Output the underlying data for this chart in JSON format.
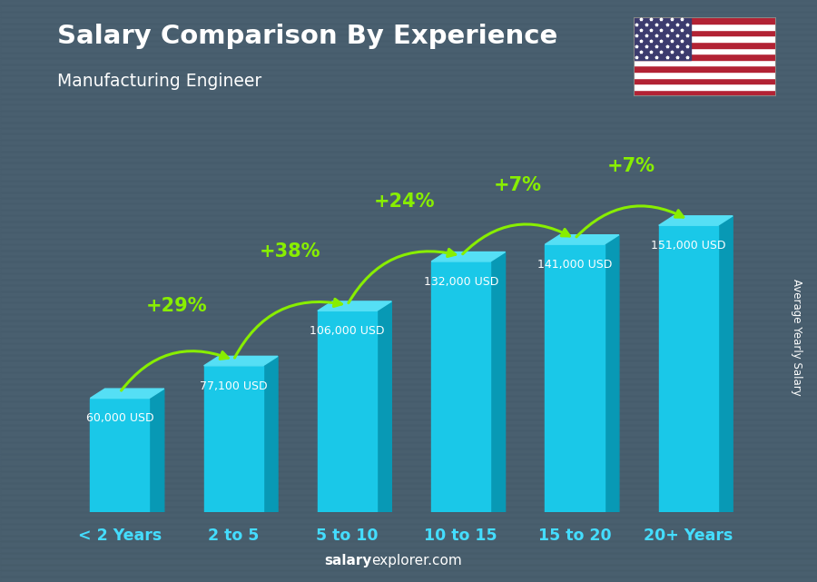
{
  "title": "Salary Comparison By Experience",
  "subtitle": "Manufacturing Engineer",
  "categories": [
    "< 2 Years",
    "2 to 5",
    "5 to 10",
    "10 to 15",
    "15 to 20",
    "20+ Years"
  ],
  "values": [
    60000,
    77100,
    106000,
    132000,
    141000,
    151000
  ],
  "value_labels": [
    "60,000 USD",
    "77,100 USD",
    "106,000 USD",
    "132,000 USD",
    "141,000 USD",
    "151,000 USD"
  ],
  "pct_changes": [
    "+29%",
    "+38%",
    "+24%",
    "+7%",
    "+7%"
  ],
  "bar_face_color": "#1ac8e8",
  "bar_top_color": "#55dff5",
  "bar_side_color": "#0899b5",
  "bg_color": "#4a6070",
  "title_color": "#ffffff",
  "subtitle_color": "#ffffff",
  "label_color": "#ffffff",
  "pct_color": "#88ee00",
  "tick_color": "#44ddff",
  "watermark_bold": "salary",
  "watermark_rest": "explorer.com",
  "ylabel": "Average Yearly Salary",
  "bar_width": 0.52,
  "ylim": [
    0,
    190000
  ],
  "xlim": [
    -0.55,
    5.7
  ]
}
